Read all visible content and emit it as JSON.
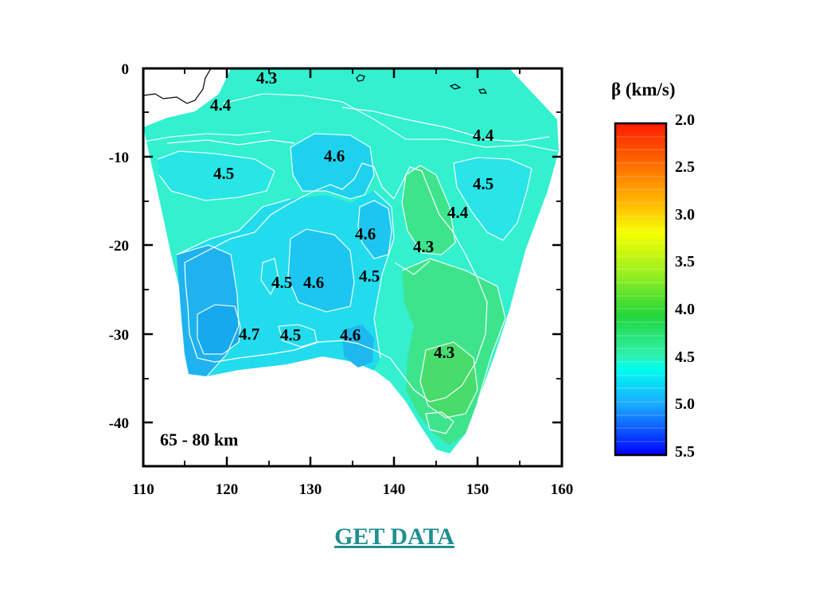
{
  "figure": {
    "depth_label": "65 - 80 km",
    "x_ticks": [
      "110",
      "120",
      "130",
      "140",
      "150",
      "160"
    ],
    "y_ticks": [
      "0",
      "-10",
      "-20",
      "-30",
      "-40"
    ],
    "contour_labels": [
      "4.3",
      "4.4",
      "4.4",
      "4.6",
      "4.5",
      "4.5",
      "4.4",
      "4.6",
      "4.3",
      "4.5",
      "4.6",
      "4.5",
      "4.7",
      "4.5",
      "4.6",
      "4.3"
    ],
    "colorbar": {
      "title": "β (km/s)",
      "ticks": [
        "2.0",
        "2.5",
        "3.0",
        "3.5",
        "4.0",
        "4.5",
        "5.0",
        "5.5"
      ],
      "min": 2.0,
      "max": 5.5,
      "colors": [
        "#ff1a00",
        "#ff8c00",
        "#ffff00",
        "#2fd62f",
        "#00ffdd",
        "#1aa0ff",
        "#0000ff"
      ]
    },
    "fill_colors": {
      "ocean_mid": "#33f0cf",
      "central": "#22d7ee",
      "deep_blue": "#1fb6ef",
      "green": "#40e07a"
    }
  },
  "link": {
    "label": "GET DATA",
    "color": "#1f8f8f"
  }
}
